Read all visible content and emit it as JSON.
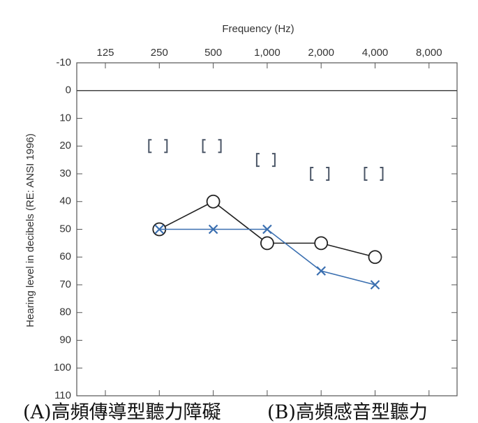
{
  "chart_data": {
    "type": "line",
    "x_label": "Frequency (Hz)",
    "y_label": "Hearing level in decibels (RE: ANSI 1996)",
    "categories": [
      "125",
      "250",
      "500",
      "1,000",
      "2,000",
      "4,000",
      "8,000"
    ],
    "series": [
      {
        "marker": "circle",
        "line": true,
        "color": "#222222",
        "values": [
          null,
          50,
          40,
          55,
          55,
          60,
          null
        ]
      },
      {
        "marker": "x",
        "line": true,
        "color": "#3a6fb0",
        "values": [
          null,
          50,
          50,
          50,
          65,
          70,
          null
        ]
      },
      {
        "marker": "bracket",
        "line": false,
        "color": "#4a5566",
        "values": [
          null,
          20,
          20,
          25,
          30,
          30,
          null
        ]
      }
    ],
    "ylim": [
      -10,
      110
    ],
    "y_inverted": true,
    "yticks": [
      -10,
      0,
      10,
      20,
      30,
      40,
      50,
      60,
      70,
      80,
      90,
      100,
      110
    ],
    "captions": [
      "(A)高頻傳導型聽力障礙",
      "(B)高頻感音型聽力"
    ]
  }
}
